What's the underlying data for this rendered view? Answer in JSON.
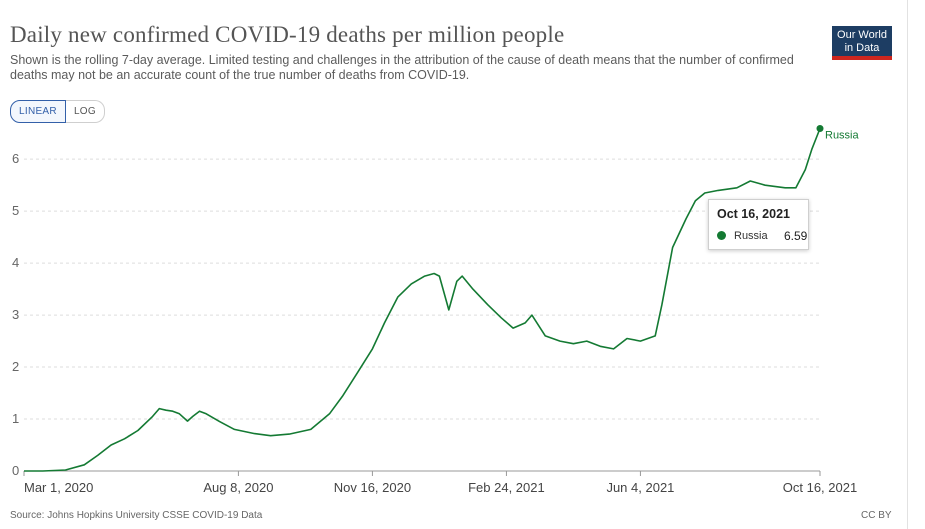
{
  "header": {
    "title": "Daily new confirmed COVID-19 deaths per million people",
    "subtitle": "Shown is the rolling 7-day average. Limited testing and challenges in the attribution of the cause of death means that the number of confirmed deaths may not be an accurate count of the true number of deaths from COVID-19.",
    "logo_line1": "Our World",
    "logo_line2": "in Data"
  },
  "controls": {
    "linear_label": "LINEAR",
    "log_label": "LOG",
    "active": "linear"
  },
  "footer": {
    "source": "Source: Johns Hopkins University CSSE COVID-19 Data",
    "license": "CC BY"
  },
  "tooltip": {
    "date": "Oct 16, 2021",
    "series": "Russia",
    "value": "6.59"
  },
  "colors": {
    "series": "#147a33",
    "grid": "#dddddd",
    "axis": "#666666",
    "logo_bg": "#1d3d63",
    "logo_accent": "#ce261e"
  },
  "chart_data": {
    "type": "line",
    "title": "Daily new confirmed COVID-19 deaths per million people",
    "xlabel": "",
    "ylabel": "",
    "ylim": [
      0,
      6.6
    ],
    "yticks": [
      0,
      1,
      2,
      3,
      4,
      5,
      6
    ],
    "xticks": [
      "2020-03-01",
      "2020-08-08",
      "2020-11-16",
      "2021-02-24",
      "2021-06-04",
      "2021-10-16"
    ],
    "xtick_labels": [
      "Mar 1, 2020",
      "Aug 8, 2020",
      "Nov 16, 2020",
      "Feb 24, 2021",
      "Jun 4, 2021",
      "Oct 16, 2021"
    ],
    "series": [
      {
        "name": "Russia",
        "points": [
          [
            "2020-03-01",
            0
          ],
          [
            "2020-03-15",
            0
          ],
          [
            "2020-04-01",
            0.02
          ],
          [
            "2020-04-15",
            0.12
          ],
          [
            "2020-04-25",
            0.3
          ],
          [
            "2020-05-05",
            0.5
          ],
          [
            "2020-05-15",
            0.62
          ],
          [
            "2020-05-25",
            0.78
          ],
          [
            "2020-06-05",
            1.05
          ],
          [
            "2020-06-10",
            1.2
          ],
          [
            "2020-06-15",
            1.17
          ],
          [
            "2020-06-20",
            1.15
          ],
          [
            "2020-06-25",
            1.1
          ],
          [
            "2020-07-01",
            0.96
          ],
          [
            "2020-07-05",
            1.05
          ],
          [
            "2020-07-10",
            1.15
          ],
          [
            "2020-07-15",
            1.1
          ],
          [
            "2020-07-25",
            0.95
          ],
          [
            "2020-08-05",
            0.8
          ],
          [
            "2020-08-20",
            0.72
          ],
          [
            "2020-09-01",
            0.68
          ],
          [
            "2020-09-15",
            0.71
          ],
          [
            "2020-10-01",
            0.8
          ],
          [
            "2020-10-15",
            1.1
          ],
          [
            "2020-10-25",
            1.45
          ],
          [
            "2020-11-05",
            1.9
          ],
          [
            "2020-11-16",
            2.35
          ],
          [
            "2020-11-25",
            2.85
          ],
          [
            "2020-12-05",
            3.35
          ],
          [
            "2020-12-15",
            3.6
          ],
          [
            "2020-12-25",
            3.75
          ],
          [
            "2021-01-01",
            3.8
          ],
          [
            "2021-01-05",
            3.75
          ],
          [
            "2021-01-12",
            3.1
          ],
          [
            "2021-01-18",
            3.65
          ],
          [
            "2021-01-22",
            3.75
          ],
          [
            "2021-01-30",
            3.5
          ],
          [
            "2021-02-10",
            3.2
          ],
          [
            "2021-02-20",
            2.95
          ],
          [
            "2021-03-01",
            2.75
          ],
          [
            "2021-03-10",
            2.85
          ],
          [
            "2021-03-15",
            3.0
          ],
          [
            "2021-03-25",
            2.6
          ],
          [
            "2021-04-05",
            2.5
          ],
          [
            "2021-04-15",
            2.45
          ],
          [
            "2021-04-25",
            2.5
          ],
          [
            "2021-05-05",
            2.4
          ],
          [
            "2021-05-15",
            2.35
          ],
          [
            "2021-05-25",
            2.55
          ],
          [
            "2021-06-04",
            2.5
          ],
          [
            "2021-06-15",
            2.6
          ],
          [
            "2021-06-20",
            3.2
          ],
          [
            "2021-06-28",
            4.3
          ],
          [
            "2021-07-08",
            4.85
          ],
          [
            "2021-07-15",
            5.2
          ],
          [
            "2021-07-22",
            5.35
          ],
          [
            "2021-08-01",
            5.4
          ],
          [
            "2021-08-15",
            5.45
          ],
          [
            "2021-08-25",
            5.58
          ],
          [
            "2021-09-05",
            5.5
          ],
          [
            "2021-09-20",
            5.45
          ],
          [
            "2021-09-28",
            5.45
          ],
          [
            "2021-10-05",
            5.8
          ],
          [
            "2021-10-10",
            6.2
          ],
          [
            "2021-10-16",
            6.59
          ]
        ]
      }
    ]
  }
}
